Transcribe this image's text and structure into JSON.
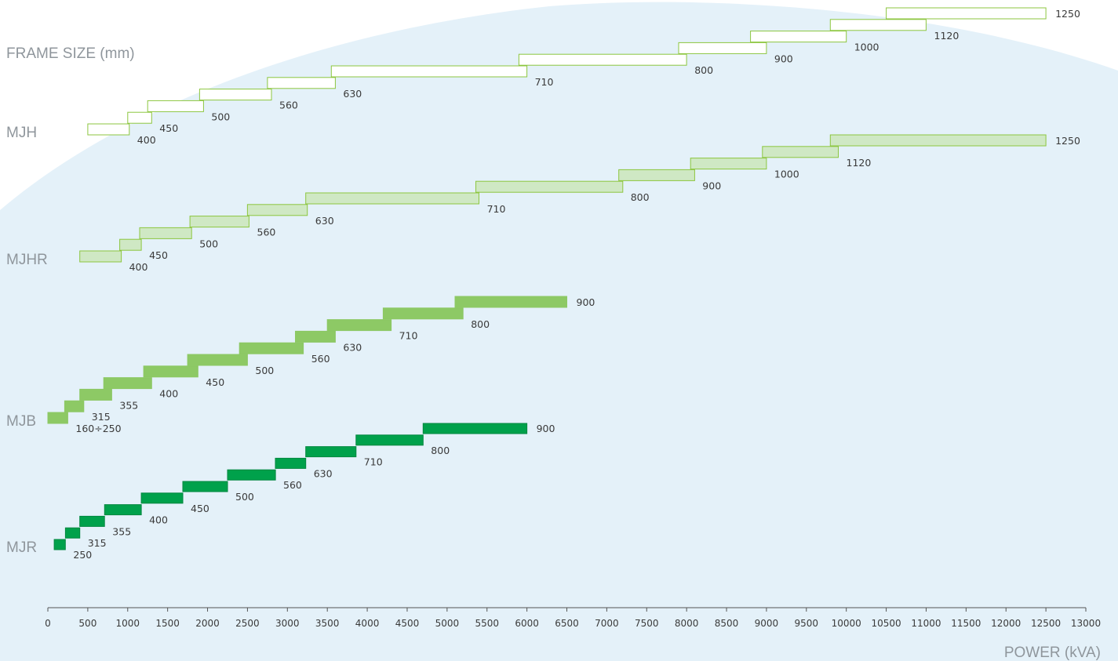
{
  "chart_data": {
    "type": "bar",
    "title": "FRAME SIZE (mm)",
    "xlabel": "POWER (kVA)",
    "ylabel": "",
    "xlim": [
      0,
      13000
    ],
    "x_ticks": [
      0,
      500,
      1000,
      1500,
      2000,
      2500,
      3000,
      3500,
      4000,
      4500,
      5000,
      5500,
      6000,
      6500,
      7000,
      7500,
      8000,
      8500,
      9000,
      9500,
      10000,
      10500,
      11000,
      11500,
      12000,
      12500,
      13000
    ],
    "grid": false,
    "background_color": "#e4f1f9",
    "series": [
      {
        "name": "MJH",
        "fill": "#ffffff",
        "stroke": "#8cc63f",
        "bars": [
          {
            "label": "400",
            "min": 500,
            "max": 1020
          },
          {
            "label": "450",
            "min": 1000,
            "max": 1300
          },
          {
            "label": "500",
            "min": 1250,
            "max": 1950
          },
          {
            "label": "560",
            "min": 1900,
            "max": 2800
          },
          {
            "label": "630",
            "min": 2750,
            "max": 3600
          },
          {
            "label": "710",
            "min": 3550,
            "max": 6000
          },
          {
            "label": "800",
            "min": 5900,
            "max": 8000
          },
          {
            "label": "900",
            "min": 7900,
            "max": 9000
          },
          {
            "label": "1000",
            "min": 8800,
            "max": 10000
          },
          {
            "label": "1120",
            "min": 9800,
            "max": 11000
          },
          {
            "label": "1250",
            "min": 10500,
            "max": 12500
          }
        ]
      },
      {
        "name": "MJHR",
        "fill": "#cfe8c4",
        "stroke": "#8cc63f",
        "bars": [
          {
            "label": "400",
            "min": 400,
            "max": 920
          },
          {
            "label": "450",
            "min": 900,
            "max": 1170
          },
          {
            "label": "500",
            "min": 1150,
            "max": 1800
          },
          {
            "label": "560",
            "min": 1780,
            "max": 2520
          },
          {
            "label": "630",
            "min": 2500,
            "max": 3250
          },
          {
            "label": "710",
            "min": 3230,
            "max": 5400
          },
          {
            "label": "800",
            "min": 5360,
            "max": 7200
          },
          {
            "label": "900",
            "min": 7150,
            "max": 8100
          },
          {
            "label": "1000",
            "min": 8050,
            "max": 9000
          },
          {
            "label": "1120",
            "min": 8950,
            "max": 9900
          },
          {
            "label": "1250",
            "min": 9800,
            "max": 12500
          }
        ]
      },
      {
        "name": "MJB",
        "fill": "#8dc965",
        "stroke": "#8dc965",
        "bars": [
          {
            "label": "160÷250",
            "min": 0,
            "max": 250
          },
          {
            "label": "315",
            "min": 210,
            "max": 450
          },
          {
            "label": "355",
            "min": 400,
            "max": 800
          },
          {
            "label": "400",
            "min": 700,
            "max": 1300
          },
          {
            "label": "450",
            "min": 1200,
            "max": 1880
          },
          {
            "label": "500",
            "min": 1750,
            "max": 2500
          },
          {
            "label": "560",
            "min": 2400,
            "max": 3200
          },
          {
            "label": "630",
            "min": 3100,
            "max": 3600
          },
          {
            "label": "710",
            "min": 3500,
            "max": 4300
          },
          {
            "label": "800",
            "min": 4200,
            "max": 5200
          },
          {
            "label": "900",
            "min": 5100,
            "max": 6500
          }
        ]
      },
      {
        "name": "MJR",
        "fill": "#00a14b",
        "stroke": "#00873f",
        "bars": [
          {
            "label": "250",
            "min": 80,
            "max": 220
          },
          {
            "label": "315",
            "min": 220,
            "max": 400
          },
          {
            "label": "355",
            "min": 400,
            "max": 710
          },
          {
            "label": "400",
            "min": 710,
            "max": 1170
          },
          {
            "label": "450",
            "min": 1170,
            "max": 1690
          },
          {
            "label": "500",
            "min": 1690,
            "max": 2250
          },
          {
            "label": "560",
            "min": 2250,
            "max": 2850
          },
          {
            "label": "630",
            "min": 2850,
            "max": 3230
          },
          {
            "label": "710",
            "min": 3230,
            "max": 3860
          },
          {
            "label": "800",
            "min": 3860,
            "max": 4700
          },
          {
            "label": "900",
            "min": 4700,
            "max": 6000
          }
        ]
      }
    ]
  }
}
